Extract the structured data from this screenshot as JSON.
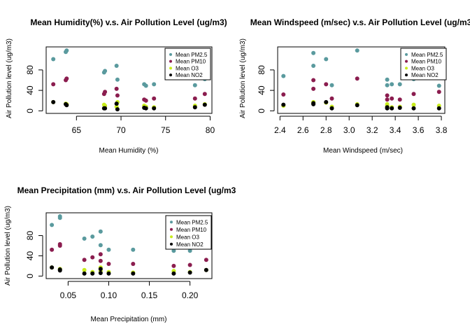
{
  "colors": {
    "pm25": "#5a9a9e",
    "pm10": "#8b1d4f",
    "o3": "#c8ec1c",
    "no2": "#000000"
  },
  "chart_data": [
    {
      "id": "humidity",
      "type": "scatter",
      "title": "Mean Humidity(%) v.s. Air Pollution Level (ug/m3)",
      "xlabel": "Mean Humidity (%)",
      "ylabel": "Air Pollution level (ug/m3)",
      "xlim": [
        61.6,
        80.2
      ],
      "ylim": [
        -5,
        125
      ],
      "xticks": [
        65,
        70,
        75,
        80
      ],
      "xtick_labels": [
        "65",
        "70",
        "75",
        "80"
      ],
      "yticks": [
        0,
        40,
        80
      ],
      "ytick_labels": [
        "0",
        "40",
        "80"
      ],
      "legend_position": "top-right",
      "series": [
        {
          "name": "Mean PM2.5",
          "color_key": "pm25",
          "x": [
            62.4,
            63.8,
            63.9,
            68.1,
            68.2,
            69.5,
            69.6,
            72.6,
            72.8,
            73.7,
            78.3,
            79.4
          ],
          "y": [
            101,
            115,
            118,
            75,
            78,
            88,
            61,
            52,
            49,
            52,
            50,
            62
          ]
        },
        {
          "name": "Mean PM10",
          "color_key": "pm10",
          "x": [
            62.4,
            63.8,
            63.9,
            68.1,
            68.2,
            69.5,
            69.6,
            72.6,
            72.8,
            73.7,
            78.3,
            79.4
          ],
          "y": [
            52,
            60,
            63,
            33,
            37,
            43,
            30,
            22,
            20,
            24,
            24,
            33
          ]
        },
        {
          "name": "Mean O3",
          "color_key": "o3",
          "x": [
            62.4,
            63.8,
            63.9,
            68.1,
            68.2,
            69.5,
            69.6,
            72.6,
            72.8,
            73.7,
            78.3,
            79.4
          ],
          "y": [
            17,
            14,
            13,
            12,
            10,
            8,
            17,
            10,
            8,
            7,
            10,
            13
          ]
        },
        {
          "name": "Mean NO2",
          "color_key": "no2",
          "x": [
            62.4,
            63.8,
            63.9,
            68.1,
            68.2,
            69.5,
            69.6,
            72.6,
            72.8,
            73.7,
            78.3,
            79.4
          ],
          "y": [
            17,
            13,
            11,
            5,
            5,
            14,
            3,
            6,
            5,
            5,
            7,
            12
          ]
        }
      ]
    },
    {
      "id": "windspeed",
      "type": "scatter",
      "title": "Mean Windspeed (m/sec) v.s. Air Pollution Level (ug/m3",
      "xlabel": "Mean Windspeed (m/sec)",
      "ylabel": "Air Pollution level (ug/m3)",
      "xlim": [
        2.38,
        3.83
      ],
      "ylim": [
        -5,
        125
      ],
      "xticks": [
        2.4,
        2.6,
        2.8,
        3.0,
        3.2,
        3.4,
        3.6,
        3.8
      ],
      "xtick_labels": [
        "2.4",
        "2.6",
        "2.8",
        "3.0",
        "3.2",
        "3.4",
        "3.6",
        "3.8"
      ],
      "yticks": [
        0,
        40,
        80
      ],
      "ytick_labels": [
        "0",
        "40",
        "80"
      ],
      "legend_position": "top-right",
      "series": [
        {
          "name": "Mean PM2.5",
          "color_key": "pm25",
          "x": [
            2.43,
            2.69,
            2.69,
            2.8,
            2.85,
            3.07,
            3.33,
            3.33,
            3.37,
            3.44,
            3.56,
            3.78
          ],
          "y": [
            68,
            113,
            88,
            101,
            50,
            118,
            61,
            50,
            52,
            52,
            62,
            49
          ]
        },
        {
          "name": "Mean PM10",
          "color_key": "pm10",
          "x": [
            2.43,
            2.69,
            2.69,
            2.8,
            2.85,
            3.07,
            3.33,
            3.33,
            3.37,
            3.44,
            3.56,
            3.78
          ],
          "y": [
            32,
            60,
            43,
            52,
            24,
            63,
            30,
            22,
            24,
            22,
            33,
            37
          ]
        },
        {
          "name": "Mean O3",
          "color_key": "o3",
          "x": [
            2.43,
            2.69,
            2.69,
            2.8,
            2.85,
            3.07,
            3.33,
            3.33,
            3.37,
            3.44,
            3.56,
            3.78
          ],
          "y": [
            10,
            14,
            17,
            16,
            8,
            13,
            10,
            13,
            7,
            8,
            12,
            10
          ]
        },
        {
          "name": "Mean NO2",
          "color_key": "no2",
          "x": [
            2.43,
            2.69,
            2.69,
            2.8,
            2.85,
            3.07,
            3.33,
            3.33,
            3.37,
            3.44,
            3.56,
            3.78
          ],
          "y": [
            12,
            13,
            15,
            17,
            5,
            11,
            5,
            7,
            5,
            6,
            5,
            5
          ]
        }
      ]
    },
    {
      "id": "precipitation",
      "type": "scatter",
      "title": "Mean Precipitation (mm) v.s. Air Pollution Level (ug/m3",
      "xlabel": "Mean Precipitation (mm)",
      "ylabel": "Air Pollution level (ug/m3)",
      "xlim": [
        0.023,
        0.227
      ],
      "ylim": [
        -5,
        125
      ],
      "xticks": [
        0.05,
        0.1,
        0.15,
        0.2
      ],
      "xtick_labels": [
        "0.05",
        "0.10",
        "0.15",
        "0.20"
      ],
      "yticks": [
        0,
        40,
        80
      ],
      "ytick_labels": [
        "0",
        "40",
        "80"
      ],
      "legend_position": "top-right",
      "series": [
        {
          "name": "Mean PM2.5",
          "color_key": "pm25",
          "x": [
            0.03,
            0.04,
            0.04,
            0.07,
            0.08,
            0.09,
            0.09,
            0.1,
            0.13,
            0.18,
            0.2,
            0.22
          ],
          "y": [
            101,
            115,
            118,
            74,
            78,
            88,
            61,
            52,
            52,
            50,
            50,
            62
          ]
        },
        {
          "name": "Mean PM10",
          "color_key": "pm10",
          "x": [
            0.03,
            0.04,
            0.04,
            0.07,
            0.08,
            0.09,
            0.09,
            0.1,
            0.13,
            0.18,
            0.2,
            0.22
          ],
          "y": [
            52,
            60,
            63,
            32,
            37,
            43,
            30,
            24,
            24,
            20,
            22,
            32
          ]
        },
        {
          "name": "Mean O3",
          "color_key": "o3",
          "x": [
            0.03,
            0.04,
            0.04,
            0.07,
            0.08,
            0.09,
            0.09,
            0.1,
            0.13,
            0.18,
            0.2,
            0.22
          ],
          "y": [
            17,
            14,
            13,
            12,
            8,
            10,
            17,
            8,
            7,
            10,
            8,
            12
          ]
        },
        {
          "name": "Mean NO2",
          "color_key": "no2",
          "x": [
            0.03,
            0.04,
            0.04,
            0.07,
            0.08,
            0.09,
            0.09,
            0.1,
            0.13,
            0.18,
            0.2,
            0.22
          ],
          "y": [
            17,
            13,
            11,
            5,
            5,
            14,
            6,
            5,
            5,
            5,
            7,
            12
          ]
        }
      ]
    }
  ]
}
